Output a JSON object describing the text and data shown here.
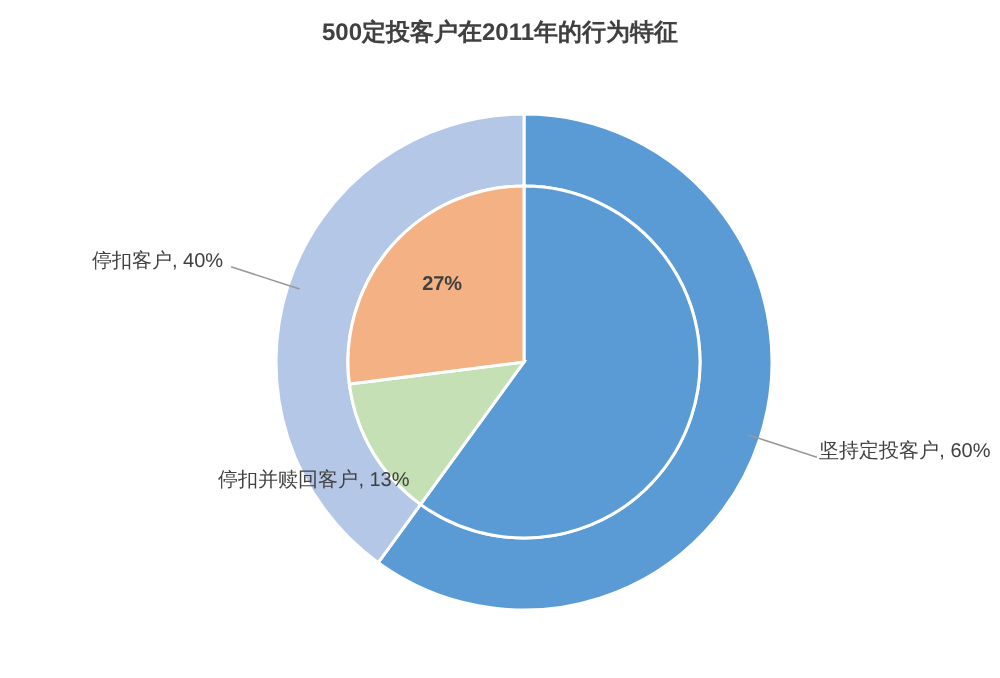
{
  "chart_data": [
    {
      "type": "donut",
      "title": "500定投客户在2011年的行为特征",
      "categories": [
        "坚持定投客户",
        "停扣客户"
      ],
      "values": [
        60,
        40
      ],
      "value_labels": [
        "60%",
        "40%"
      ],
      "colors": [
        "#5b9bd5",
        "#b4c7e7"
      ]
    },
    {
      "type": "pie",
      "categories": [
        null,
        "停扣并赎回客户",
        null
      ],
      "values": [
        60,
        13,
        27
      ],
      "value_labels": [
        null,
        "13%",
        "27%"
      ],
      "colors": [
        "#5b9bd5",
        "#c5e0b4",
        "#f4b183"
      ]
    }
  ]
}
